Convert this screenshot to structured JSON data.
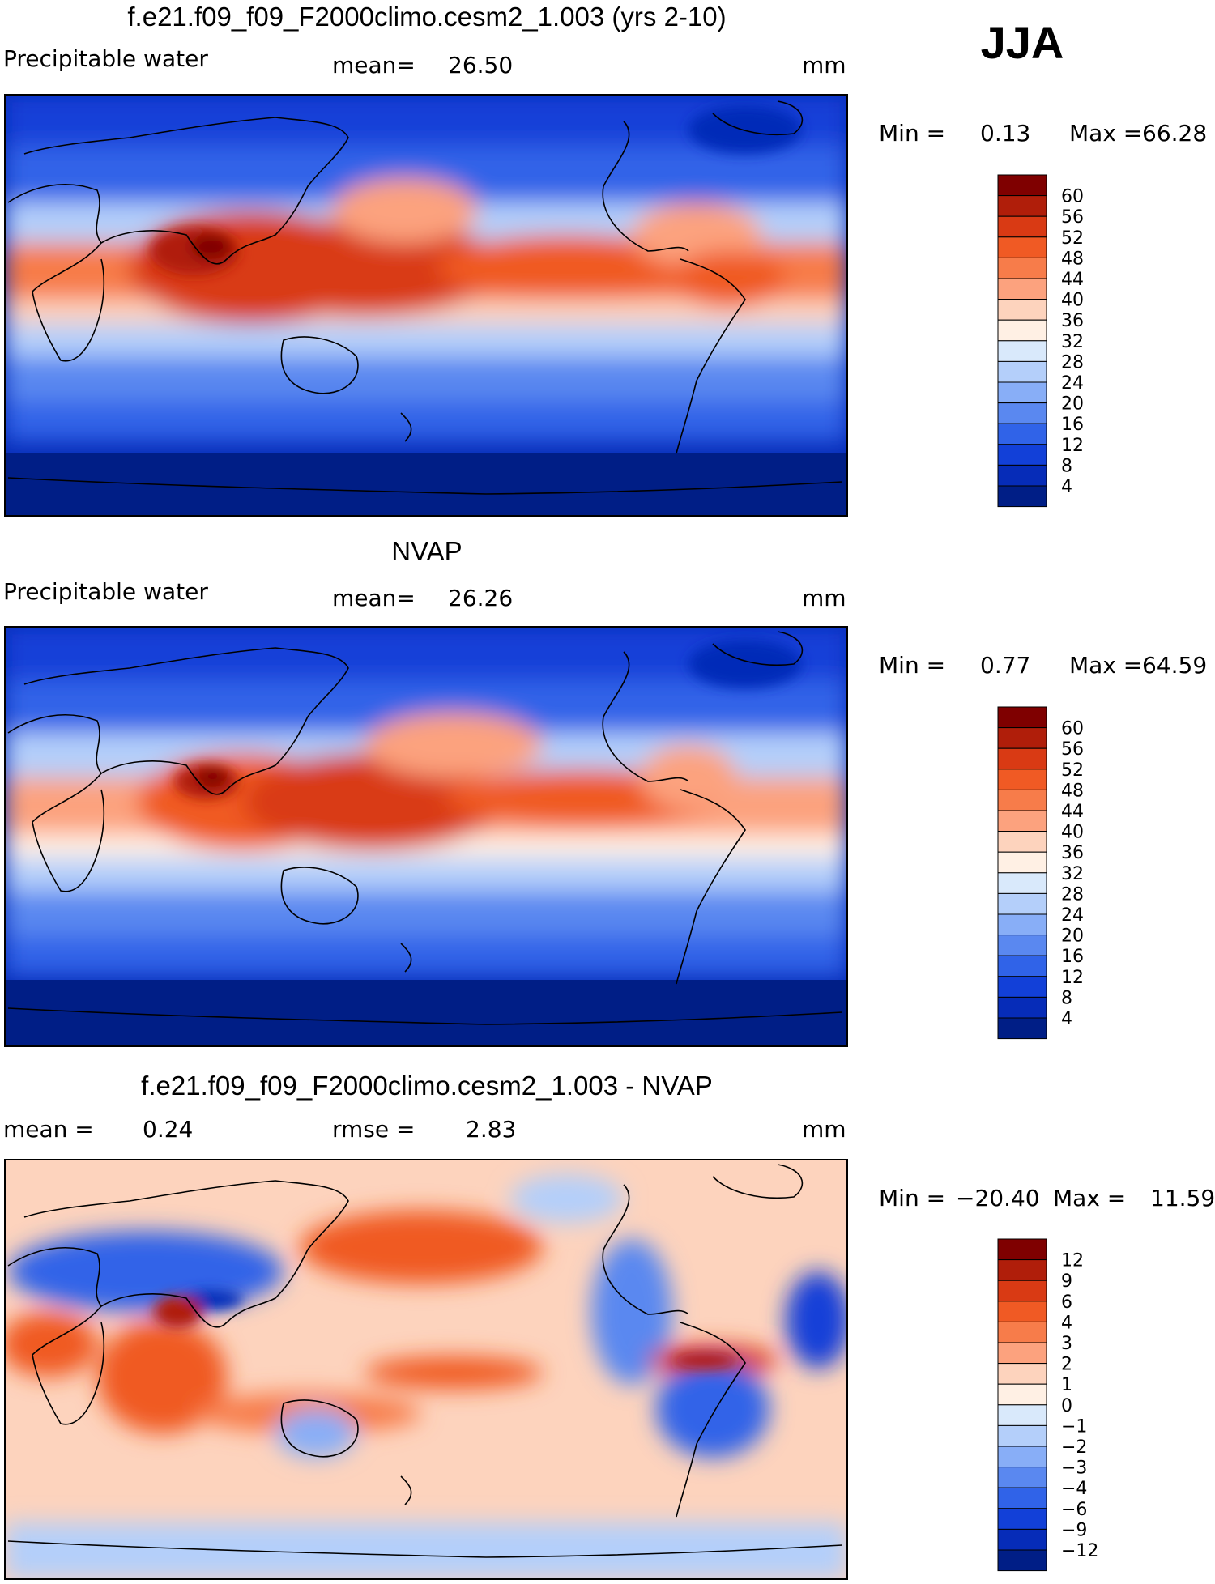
{
  "season": "JJA",
  "panels": [
    {
      "title": "f.e21.f09_f09_F2000climo.cesm2_1.003 (yrs 2-10)",
      "left_label": "Precipitable water",
      "mid_label": "mean=",
      "mid_value": "26.50",
      "stat2_label": "",
      "stat2_value": "",
      "units": "mm",
      "min_label": "Min =",
      "min_value": "0.13",
      "max_label": "Max =",
      "max_value": "66.28",
      "colorbar_labels": [
        "60",
        "56",
        "52",
        "48",
        "44",
        "40",
        "36",
        "32",
        "28",
        "24",
        "20",
        "16",
        "12",
        "8",
        "4"
      ]
    },
    {
      "title": "NVAP",
      "left_label": "Precipitable water",
      "mid_label": "mean=",
      "mid_value": "26.26",
      "stat2_label": "",
      "stat2_value": "",
      "units": "mm",
      "min_label": "Min =",
      "min_value": "0.77",
      "max_label": "Max =",
      "max_value": "64.59",
      "colorbar_labels": [
        "60",
        "56",
        "52",
        "48",
        "44",
        "40",
        "36",
        "32",
        "28",
        "24",
        "20",
        "16",
        "12",
        "8",
        "4"
      ]
    },
    {
      "title": "f.e21.f09_f09_F2000climo.cesm2_1.003 - NVAP",
      "left_label": "mean =",
      "left_value": "0.24",
      "mid_label": "rmse =",
      "mid_value": "2.83",
      "units": "mm",
      "min_label": "Min =",
      "min_value": "−20.40",
      "max_label": "Max =",
      "max_value": "11.59",
      "colorbar_labels": [
        "12",
        "9",
        "6",
        "4",
        "3",
        "2",
        "1",
        "0",
        "−1",
        "−2",
        "−3",
        "−4",
        "−6",
        "−9",
        "−12"
      ]
    }
  ],
  "colors": {
    "abs_scale": [
      "#7f0000",
      "#b01e0a",
      "#d93a14",
      "#f05a24",
      "#f77c4a",
      "#fca27e",
      "#fdd3bd",
      "#fff0e4",
      "#d9e9fb",
      "#b4cffa",
      "#88aef7",
      "#5a88f0",
      "#3063e8",
      "#1240d8",
      "#062cb8",
      "#001e86"
    ],
    "diff_scale": [
      "#7f0000",
      "#b01e0a",
      "#d93a14",
      "#f05a24",
      "#f77c4a",
      "#fca27e",
      "#fdd3bd",
      "#fff0e4",
      "#d9e9fb",
      "#b4cffa",
      "#88aef7",
      "#5a88f0",
      "#3063e8",
      "#1240d8",
      "#062cb8",
      "#001e86"
    ],
    "coast": "#000000"
  }
}
